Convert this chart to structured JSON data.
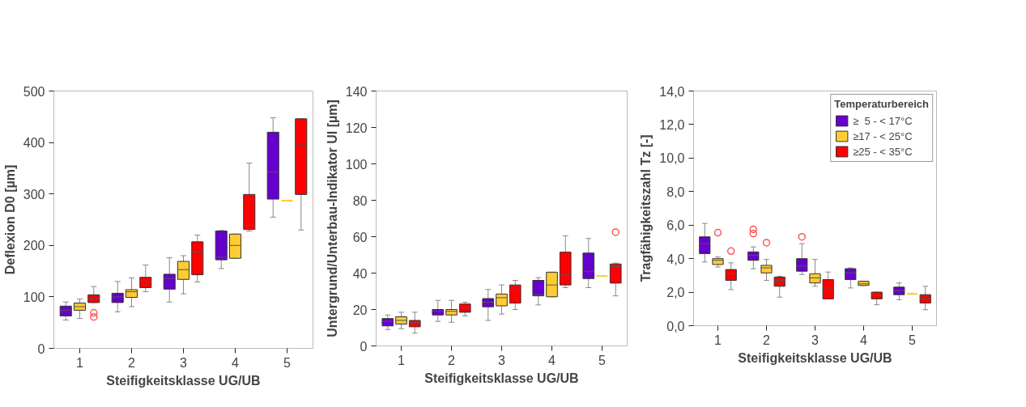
{
  "chart_data": [
    {
      "type": "box",
      "xlabel": "Steifigkeitsklasse UG/UB",
      "ylabel": "Deflexion D0 [µm]",
      "categories": [
        "1",
        "2",
        "3",
        "4",
        "5"
      ],
      "ylim": [
        0,
        500
      ],
      "yticks": [
        0,
        100,
        200,
        300,
        400,
        500
      ],
      "grid": false,
      "series": [
        {
          "color": "#6600cc",
          "boxes": [
            {
              "low": 55,
              "q1": 63,
              "median": 74,
              "q3": 82,
              "high": 90
            },
            {
              "low": 71,
              "q1": 89,
              "median": 100,
              "q3": 107,
              "high": 130
            },
            {
              "low": 90,
              "q1": 115,
              "median": 136,
              "q3": 144,
              "high": 176
            },
            {
              "low": 155,
              "q1": 172,
              "median": 177,
              "q3": 228,
              "high": 229
            },
            {
              "low": 255,
              "q1": 290,
              "median": 343,
              "q3": 420,
              "high": 448
            }
          ]
        },
        {
          "color": "#ffcc33",
          "boxes": [
            {
              "low": 58,
              "q1": 74,
              "median": 81,
              "q3": 88,
              "high": 96
            },
            {
              "low": 81,
              "q1": 99,
              "median": 110,
              "q3": 114,
              "high": 137
            },
            {
              "low": 106,
              "q1": 134,
              "median": 153,
              "q3": 169,
              "high": 180
            },
            {
              "low": 175,
              "q1": 175,
              "median": 200,
              "q3": 222,
              "high": 222
            },
            {
              "low": 287,
              "q1": 287,
              "median": 287,
              "q3": 287,
              "high": 287
            }
          ]
        },
        {
          "color": "#ff0000",
          "boxes": [
            {
              "low": 89,
              "q1": 89,
              "median": 96,
              "q3": 104,
              "high": 120,
              "outliers": [
                69,
                61
              ]
            },
            {
              "low": 110,
              "q1": 118,
              "median": 130,
              "q3": 138,
              "high": 162
            },
            {
              "low": 129,
              "q1": 143,
              "median": 187,
              "q3": 207,
              "high": 220
            },
            {
              "low": 228,
              "q1": 231,
              "median": 239,
              "q3": 299,
              "high": 360
            },
            {
              "low": 230,
              "q1": 299,
              "median": 397,
              "q3": 446,
              "high": 446
            }
          ]
        }
      ]
    },
    {
      "type": "box",
      "xlabel": "Steifigkeitsklasse UG/UB",
      "ylabel": "Untergrund/Unterbau-Indikator UI [µm]",
      "categories": [
        "1",
        "2",
        "3",
        "4",
        "5"
      ],
      "ylim": [
        0,
        140
      ],
      "yticks": [
        0,
        20,
        40,
        60,
        80,
        100,
        120,
        140
      ],
      "grid": false,
      "series": [
        {
          "color": "#6600cc",
          "boxes": [
            {
              "low": 9,
              "q1": 11,
              "median": 13.5,
              "q3": 15,
              "high": 17
            },
            {
              "low": 13.5,
              "q1": 17,
              "median": 19,
              "q3": 20,
              "high": 25
            },
            {
              "low": 14,
              "q1": 21.5,
              "median": 24,
              "q3": 26,
              "high": 31
            },
            {
              "low": 22.5,
              "q1": 27.5,
              "median": 28,
              "q3": 36,
              "high": 37.5
            },
            {
              "low": 32,
              "q1": 37,
              "median": 41,
              "q3": 51,
              "high": 59
            }
          ]
        },
        {
          "color": "#ffcc33",
          "boxes": [
            {
              "low": 9.5,
              "q1": 12,
              "median": 14,
              "q3": 16,
              "high": 18.5
            },
            {
              "low": 13,
              "q1": 17,
              "median": 19,
              "q3": 20,
              "high": 25
            },
            {
              "low": 17.5,
              "q1": 22,
              "median": 26.5,
              "q3": 28.5,
              "high": 33.5
            },
            {
              "low": 27,
              "q1": 27,
              "median": 33.5,
              "q3": 40.5,
              "high": 40.5
            },
            {
              "low": 38.5,
              "q1": 38.5,
              "median": 38.5,
              "q3": 38.5,
              "high": 38.5
            }
          ]
        },
        {
          "color": "#ff0000",
          "boxes": [
            {
              "low": 7,
              "q1": 10.5,
              "median": 13,
              "q3": 14,
              "high": 18.5
            },
            {
              "low": 16.5,
              "q1": 18.5,
              "median": 21,
              "q3": 23,
              "high": 24
            },
            {
              "low": 20,
              "q1": 23.5,
              "median": 31,
              "q3": 33.5,
              "high": 36
            },
            {
              "low": 32,
              "q1": 33.5,
              "median": 39,
              "q3": 51.5,
              "high": 60.5
            },
            {
              "low": 27.5,
              "q1": 34.5,
              "median": 43.5,
              "q3": 45,
              "high": 45.5,
              "outliers": [
                62.5
              ]
            }
          ]
        }
      ]
    },
    {
      "type": "box",
      "xlabel": "Steifigkeitsklasse UG/UB",
      "ylabel": "Tragfähigkeitszahl Tz [-]",
      "legend_title": "Temperaturbereich",
      "categories": [
        "1",
        "2",
        "3",
        "4",
        "5"
      ],
      "ylim": [
        0,
        14
      ],
      "yticks": [
        {
          "value": 0,
          "label": "0,0"
        },
        {
          "value": 2,
          "label": "2,0"
        },
        {
          "value": 4,
          "label": "4,0"
        },
        {
          "value": 6,
          "label": "6,0"
        },
        {
          "value": 8,
          "label": "8,0"
        },
        {
          "value": 10,
          "label": "10,0"
        },
        {
          "value": 12,
          "label": "12,0"
        },
        {
          "value": 14,
          "label": "14,0"
        }
      ],
      "grid": false,
      "legend": "top right",
      "series": [
        {
          "name": "≥  5 - < 17°C",
          "color": "#6600cc",
          "boxes": [
            {
              "low": 3.8,
              "q1": 4.3,
              "median": 4.9,
              "q3": 5.3,
              "high": 6.1
            },
            {
              "low": 3.4,
              "q1": 3.9,
              "median": 4.2,
              "q3": 4.4,
              "high": 4.7,
              "outliers": [
                5.75,
                5.5
              ]
            },
            {
              "low": 3.05,
              "q1": 3.25,
              "median": 3.55,
              "q3": 4.0,
              "high": 4.9,
              "outliers": [
                5.3
              ]
            },
            {
              "low": 2.25,
              "q1": 2.75,
              "median": 3.15,
              "q3": 3.4,
              "high": 3.45
            },
            {
              "low": 1.55,
              "q1": 1.85,
              "median": 2.1,
              "q3": 2.3,
              "high": 2.55
            }
          ]
        },
        {
          "name": "≥17 - < 25°C",
          "color": "#ffcc33",
          "boxes": [
            {
              "low": 3.5,
              "q1": 3.65,
              "median": 3.9,
              "q3": 4.0,
              "high": 4.1,
              "outliers": [
                5.55
              ]
            },
            {
              "low": 2.7,
              "q1": 3.15,
              "median": 3.45,
              "q3": 3.6,
              "high": 3.95,
              "outliers": [
                4.95
              ]
            },
            {
              "low": 2.35,
              "q1": 2.55,
              "median": 2.85,
              "q3": 3.1,
              "high": 3.95
            },
            {
              "low": 2.4,
              "q1": 2.4,
              "median": 2.5,
              "q3": 2.65,
              "high": 2.65
            },
            {
              "low": 1.9,
              "q1": 1.9,
              "median": 1.9,
              "q3": 1.9,
              "high": 1.9
            }
          ]
        },
        {
          "name": "≥25 - < 35°C",
          "color": "#ff0000",
          "boxes": [
            {
              "low": 2.15,
              "q1": 2.7,
              "median": 3.1,
              "q3": 3.35,
              "high": 3.75,
              "outliers": [
                4.45
              ]
            },
            {
              "low": 1.7,
              "q1": 2.35,
              "median": 2.7,
              "q3": 2.9,
              "high": 2.95
            },
            {
              "low": 1.6,
              "q1": 1.6,
              "median": 2.25,
              "q3": 2.75,
              "high": 3.2
            },
            {
              "low": 1.25,
              "q1": 1.6,
              "median": 1.8,
              "q3": 2.0,
              "high": 2.0
            },
            {
              "low": 0.95,
              "q1": 1.35,
              "median": 1.6,
              "q3": 1.85,
              "high": 2.35
            }
          ]
        }
      ]
    }
  ]
}
